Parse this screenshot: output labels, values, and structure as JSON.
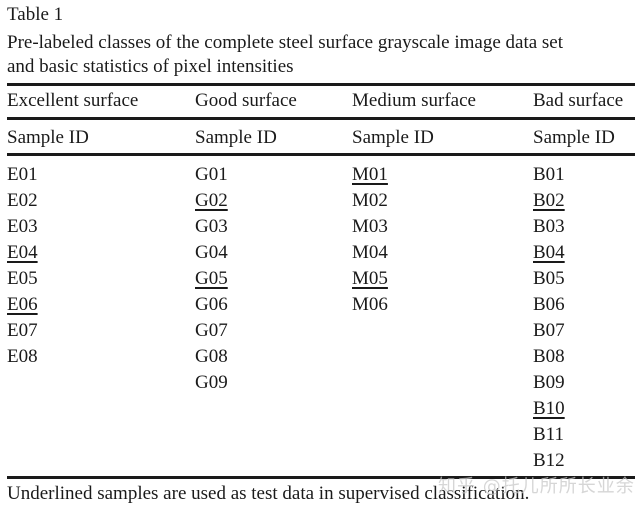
{
  "table": {
    "label": "Table 1",
    "caption_line1": "Pre-labeled classes of the complete steel surface grayscale image data set",
    "caption_line2": "and basic statistics of pixel intensities",
    "headers": [
      "Excellent surface",
      "Good surface",
      "Medium surface",
      "Bad surface"
    ],
    "subheaders": [
      "Sample ID",
      "Sample ID",
      "Sample ID",
      "Sample ID"
    ],
    "columns": [
      [
        {
          "id": "E01",
          "u": false
        },
        {
          "id": "E02",
          "u": false
        },
        {
          "id": "E03",
          "u": false
        },
        {
          "id": "E04",
          "u": true
        },
        {
          "id": "E05",
          "u": false
        },
        {
          "id": "E06",
          "u": true
        },
        {
          "id": "E07",
          "u": false
        },
        {
          "id": "E08",
          "u": false
        }
      ],
      [
        {
          "id": "G01",
          "u": false
        },
        {
          "id": "G02",
          "u": true
        },
        {
          "id": "G03",
          "u": false
        },
        {
          "id": "G04",
          "u": false
        },
        {
          "id": "G05",
          "u": true
        },
        {
          "id": "G06",
          "u": false
        },
        {
          "id": "G07",
          "u": false
        },
        {
          "id": "G08",
          "u": false
        },
        {
          "id": "G09",
          "u": false
        }
      ],
      [
        {
          "id": "M01",
          "u": true
        },
        {
          "id": "M02",
          "u": false
        },
        {
          "id": "M03",
          "u": false
        },
        {
          "id": "M04",
          "u": false
        },
        {
          "id": "M05",
          "u": true
        },
        {
          "id": "M06",
          "u": false
        }
      ],
      [
        {
          "id": "B01",
          "u": false
        },
        {
          "id": "B02",
          "u": true
        },
        {
          "id": "B03",
          "u": false
        },
        {
          "id": "B04",
          "u": true
        },
        {
          "id": "B05",
          "u": false
        },
        {
          "id": "B06",
          "u": false
        },
        {
          "id": "B07",
          "u": false
        },
        {
          "id": "B08",
          "u": false
        },
        {
          "id": "B09",
          "u": false
        },
        {
          "id": "B10",
          "u": true
        },
        {
          "id": "B11",
          "u": false
        },
        {
          "id": "B12",
          "u": false
        }
      ]
    ],
    "footnote": "Underlined samples are used as test data in supervised classification."
  },
  "watermark": "知乎 @托儿所所长业余"
}
